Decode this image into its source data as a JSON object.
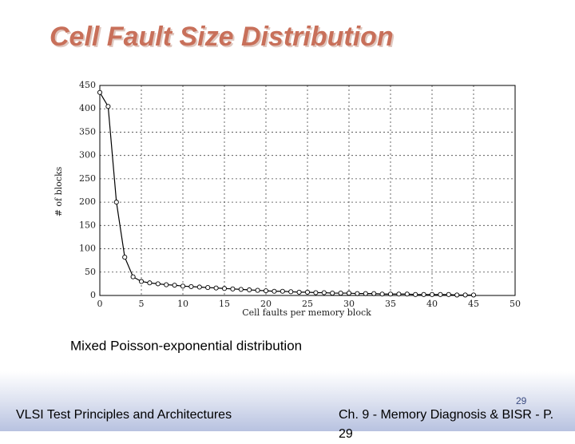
{
  "chart_data": {
    "type": "line",
    "title": "Cell Fault Size Distribution",
    "x_label": "Cell faults per memory block",
    "y_label": "# of blocks",
    "x": [
      0,
      1,
      2,
      3,
      4,
      5,
      6,
      7,
      8,
      9,
      10,
      11,
      12,
      13,
      14,
      15,
      16,
      17,
      18,
      19,
      20,
      21,
      22,
      23,
      24,
      25,
      26,
      27,
      28,
      29,
      30,
      31,
      32,
      33,
      34,
      35,
      36,
      37,
      38,
      39,
      40,
      41,
      42,
      43,
      44,
      45
    ],
    "series": [
      {
        "color": "#000000",
        "values": [
          435,
          405,
          200,
          82,
          40,
          30,
          27,
          25,
          23,
          22,
          20,
          19,
          18,
          17,
          16,
          15,
          14,
          13,
          12,
          11,
          10,
          9,
          9,
          8,
          7,
          7,
          6,
          6,
          5,
          5,
          5,
          4,
          4,
          4,
          3,
          3,
          3,
          3,
          2,
          2,
          2,
          2,
          2,
          1,
          1,
          1
        ]
      }
    ],
    "xlim": [
      0,
      50
    ],
    "xticks": [
      0,
      5,
      10,
      15,
      20,
      25,
      30,
      35,
      40,
      45,
      50
    ],
    "ylim": [
      0,
      450
    ],
    "yticks": [
      0,
      50,
      100,
      150,
      200,
      250,
      300,
      350,
      400,
      450
    ],
    "grid": true
  },
  "caption": "Mixed Poisson-exponential distribution",
  "footer": {
    "left": "VLSI Test Principles and Architectures",
    "page": "29",
    "right": "Ch. 9 - Memory Diagnosis & BISR - P. 29"
  }
}
